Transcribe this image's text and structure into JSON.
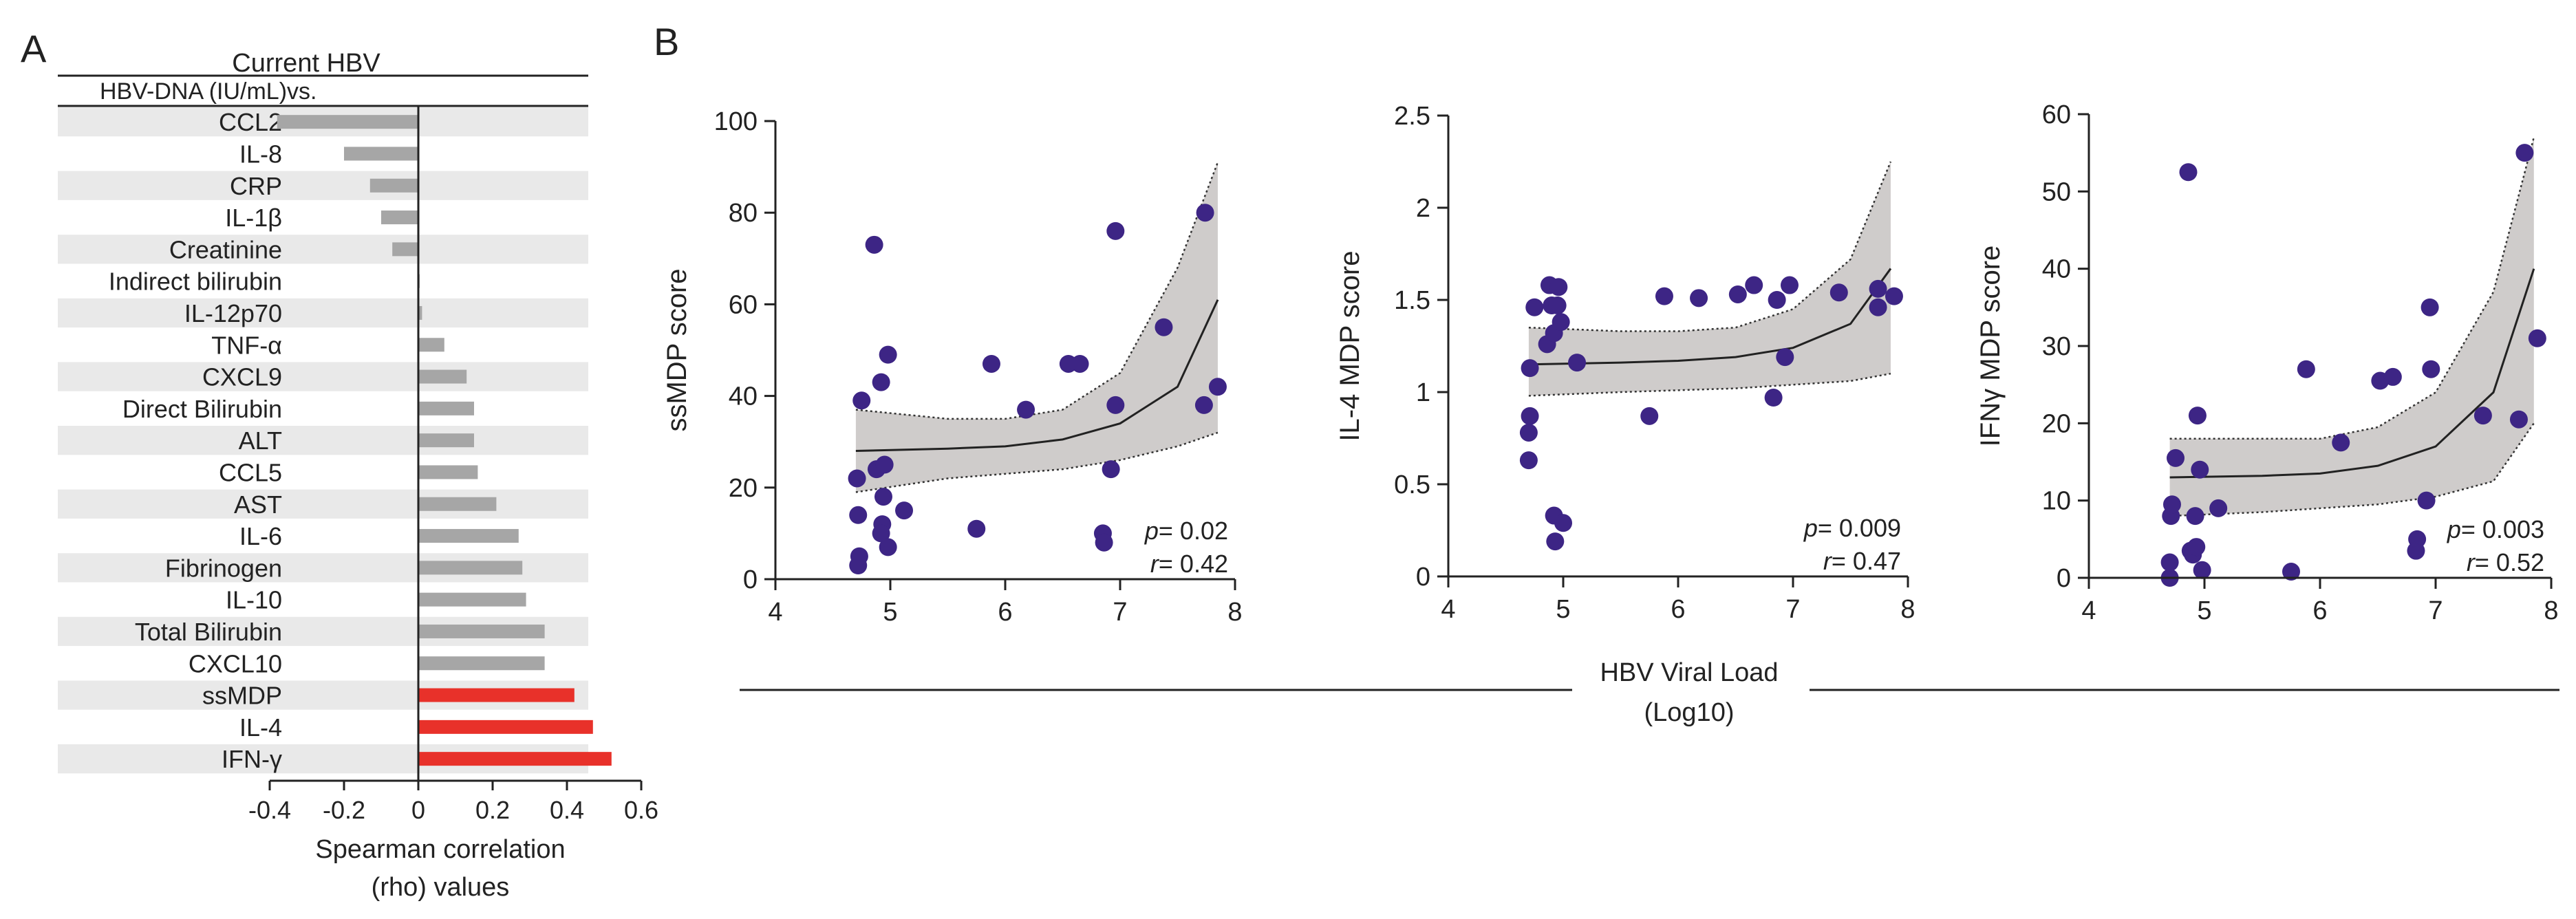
{
  "panel_labels": {
    "a": "A",
    "b": "B"
  },
  "colors": {
    "grey_bar": "#a6a6a6",
    "red_bar": "#e8312a",
    "row_shade": "#e9e9e9",
    "dot": "#3d2585",
    "band": "#cfcccb"
  },
  "chart_data": [
    {
      "type": "bar",
      "orientation": "horizontal",
      "header_line1": "Current HBV",
      "header_line2": "HBV-DNA (IU/mL)vs.",
      "xlabel_line1": "Spearman correlation",
      "xlabel_line2": "(rho) values",
      "xlim": [
        -0.4,
        0.6
      ],
      "xticks": [
        "-0.4",
        "-0.2",
        "0",
        "0.2",
        "0.4",
        "0.6"
      ],
      "categories": [
        "CCL2",
        "IL-8",
        "CRP",
        "IL-1β",
        "Creatinine",
        "Indirect bilirubin",
        "IL-12p70",
        "TNF-α",
        "CXCL9",
        "Direct Bilirubin",
        "ALT",
        "CCL5",
        "AST",
        "IL-6",
        "Fibrinogen",
        "IL-10",
        "Total Bilirubin",
        "CXCL10",
        "ssMDP",
        "IL-4",
        "IFN-γ"
      ],
      "values": [
        -0.38,
        -0.2,
        -0.13,
        -0.1,
        -0.07,
        0.0,
        0.01,
        0.07,
        0.13,
        0.15,
        0.15,
        0.16,
        0.21,
        0.27,
        0.28,
        0.29,
        0.34,
        0.34,
        0.42,
        0.47,
        0.52
      ],
      "highlighted": [
        "ssMDP",
        "IL-4",
        "IFN-γ"
      ]
    },
    {
      "type": "scatter",
      "ylabel": "ssMDP score",
      "xlim": [
        4,
        8
      ],
      "ylim": [
        0,
        100
      ],
      "xticks": [
        "4",
        "5",
        "6",
        "7",
        "8"
      ],
      "yticks": [
        "0",
        "20",
        "40",
        "60",
        "80",
        "100"
      ],
      "stat_p": "= 0.02",
      "stat_r": "= 0.42",
      "points": [
        [
          4.72,
          3
        ],
        [
          4.73,
          5
        ],
        [
          4.72,
          14
        ],
        [
          4.71,
          22
        ],
        [
          4.75,
          39
        ],
        [
          4.86,
          73
        ],
        [
          4.88,
          24
        ],
        [
          4.92,
          43
        ],
        [
          4.93,
          12
        ],
        [
          4.92,
          10
        ],
        [
          4.94,
          18
        ],
        [
          4.95,
          25
        ],
        [
          4.98,
          7
        ],
        [
          4.98,
          49
        ],
        [
          5.12,
          15
        ],
        [
          5.75,
          11
        ],
        [
          5.88,
          47
        ],
        [
          6.18,
          37
        ],
        [
          6.55,
          47
        ],
        [
          6.65,
          47
        ],
        [
          6.85,
          10
        ],
        [
          6.86,
          8
        ],
        [
          6.92,
          24
        ],
        [
          6.96,
          38
        ],
        [
          6.96,
          76
        ],
        [
          7.38,
          55
        ],
        [
          7.74,
          80
        ],
        [
          7.73,
          38
        ],
        [
          7.85,
          42
        ]
      ],
      "fit": [
        [
          4.7,
          28
        ],
        [
          5.5,
          28.5
        ],
        [
          6,
          29
        ],
        [
          6.5,
          30.5
        ],
        [
          7,
          34
        ],
        [
          7.5,
          42
        ],
        [
          7.85,
          61
        ]
      ],
      "ci_upper": [
        [
          4.7,
          37
        ],
        [
          5.5,
          35
        ],
        [
          6,
          35
        ],
        [
          6.5,
          37
        ],
        [
          7,
          45
        ],
        [
          7.5,
          68
        ],
        [
          7.85,
          91
        ]
      ],
      "ci_lower": [
        [
          4.7,
          19
        ],
        [
          5.5,
          22
        ],
        [
          6,
          23
        ],
        [
          6.5,
          24
        ],
        [
          7,
          26
        ],
        [
          7.5,
          29
        ],
        [
          7.85,
          32
        ]
      ]
    },
    {
      "type": "scatter",
      "ylabel": "IL-4 MDP score",
      "xlim": [
        4,
        8
      ],
      "ylim": [
        0,
        2.5
      ],
      "xticks": [
        "4",
        "5",
        "6",
        "7",
        "8"
      ],
      "yticks": [
        "0",
        "0.5",
        "1",
        "1.5",
        "2",
        "2.5"
      ],
      "stat_p": "= 0.009",
      "stat_r": "= 0.47",
      "points": [
        [
          4.7,
          0.63
        ],
        [
          4.7,
          0.78
        ],
        [
          4.71,
          0.87
        ],
        [
          4.71,
          1.13
        ],
        [
          4.75,
          1.46
        ],
        [
          4.86,
          1.26
        ],
        [
          4.88,
          1.58
        ],
        [
          4.9,
          1.47
        ],
        [
          4.92,
          1.32
        ],
        [
          4.92,
          0.33
        ],
        [
          4.93,
          0.19
        ],
        [
          4.95,
          1.47
        ],
        [
          4.96,
          1.57
        ],
        [
          4.98,
          1.38
        ],
        [
          5.0,
          0.29
        ],
        [
          5.12,
          1.16
        ],
        [
          5.75,
          0.87
        ],
        [
          5.88,
          1.52
        ],
        [
          6.18,
          1.51
        ],
        [
          6.52,
          1.53
        ],
        [
          6.66,
          1.58
        ],
        [
          6.83,
          0.97
        ],
        [
          6.86,
          1.5
        ],
        [
          6.93,
          1.19
        ],
        [
          6.97,
          1.58
        ],
        [
          7.4,
          1.54
        ],
        [
          7.74,
          1.56
        ],
        [
          7.74,
          1.46
        ],
        [
          7.88,
          1.52
        ]
      ],
      "fit": [
        [
          4.7,
          1.15
        ],
        [
          5.5,
          1.16
        ],
        [
          6,
          1.17
        ],
        [
          6.5,
          1.19
        ],
        [
          7,
          1.24
        ],
        [
          7.5,
          1.37
        ],
        [
          7.85,
          1.67
        ]
      ],
      "ci_upper": [
        [
          4.7,
          1.35
        ],
        [
          5.5,
          1.33
        ],
        [
          6,
          1.33
        ],
        [
          6.5,
          1.35
        ],
        [
          7,
          1.45
        ],
        [
          7.5,
          1.72
        ],
        [
          7.85,
          2.25
        ]
      ],
      "ci_lower": [
        [
          4.7,
          0.98
        ],
        [
          5.5,
          1.0
        ],
        [
          6,
          1.01
        ],
        [
          6.5,
          1.02
        ],
        [
          7,
          1.04
        ],
        [
          7.5,
          1.06
        ],
        [
          7.85,
          1.1
        ]
      ]
    },
    {
      "type": "scatter",
      "ylabel": "IFNγ MDP score",
      "xlim": [
        4,
        8
      ],
      "ylim": [
        0,
        60
      ],
      "xticks": [
        "4",
        "5",
        "6",
        "7",
        "8"
      ],
      "yticks": [
        "0",
        "10",
        "20",
        "30",
        "40",
        "50",
        "60"
      ],
      "stat_p": "= 0.003",
      "stat_r": "= 0.52",
      "points": [
        [
          4.7,
          0
        ],
        [
          4.7,
          2
        ],
        [
          4.71,
          8
        ],
        [
          4.72,
          9.5
        ],
        [
          4.75,
          15.5
        ],
        [
          4.86,
          52.5
        ],
        [
          4.88,
          3.5
        ],
        [
          4.9,
          3
        ],
        [
          4.92,
          8
        ],
        [
          4.93,
          4
        ],
        [
          4.94,
          21
        ],
        [
          4.96,
          14
        ],
        [
          4.98,
          1
        ],
        [
          5.12,
          9
        ],
        [
          5.75,
          0.8
        ],
        [
          5.88,
          27
        ],
        [
          6.18,
          17.5
        ],
        [
          6.52,
          25.5
        ],
        [
          6.63,
          26
        ],
        [
          6.83,
          3.5
        ],
        [
          6.84,
          5
        ],
        [
          6.92,
          10
        ],
        [
          6.95,
          35
        ],
        [
          6.96,
          27
        ],
        [
          7.41,
          21
        ],
        [
          7.72,
          20.5
        ],
        [
          7.77,
          55
        ],
        [
          7.88,
          31
        ]
      ],
      "fit": [
        [
          4.7,
          13
        ],
        [
          5.5,
          13.2
        ],
        [
          6,
          13.5
        ],
        [
          6.5,
          14.5
        ],
        [
          7,
          17
        ],
        [
          7.5,
          24
        ],
        [
          7.85,
          40
        ]
      ],
      "ci_upper": [
        [
          4.7,
          18
        ],
        [
          5.5,
          18
        ],
        [
          6,
          18
        ],
        [
          6.5,
          19.5
        ],
        [
          7,
          24
        ],
        [
          7.5,
          37
        ],
        [
          7.85,
          57
        ]
      ],
      "ci_lower": [
        [
          4.7,
          8
        ],
        [
          5.5,
          8.5
        ],
        [
          6,
          9
        ],
        [
          6.5,
          9.5
        ],
        [
          7,
          10.5
        ],
        [
          7.5,
          12.5
        ],
        [
          7.85,
          20
        ]
      ]
    }
  ],
  "shared_xlabel_line1": "HBV Viral Load",
  "shared_xlabel_line2": "(Log10)"
}
